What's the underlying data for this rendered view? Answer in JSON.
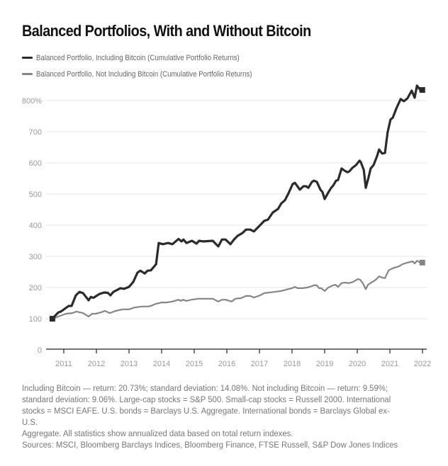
{
  "chart_data": {
    "type": "line",
    "title": "Balanced Portfolios, With and Without Bitcoin",
    "xlabel": "",
    "ylabel": "",
    "xlim": [
      2010.5,
      2022.1
    ],
    "ylim": [
      0,
      850
    ],
    "grid": true,
    "legend_position": "top-left",
    "y_ticks": [
      0,
      100,
      200,
      300,
      400,
      500,
      600,
      700,
      800
    ],
    "y_tick_labels": [
      "0",
      "100",
      "200",
      "300",
      "400",
      "500",
      "600",
      "700",
      "800%"
    ],
    "x_ticks": [
      2011,
      2012,
      2013,
      2014,
      2015,
      2016,
      2017,
      2018,
      2019,
      2020,
      2021,
      2022
    ],
    "x_tick_labels": [
      "2011",
      "2012",
      "2013",
      "2014",
      "2015",
      "2016",
      "2017",
      "2018",
      "2019",
      "2020",
      "2021",
      "2022"
    ],
    "series": [
      {
        "name": "Balanced Portfolio, Including Bitcoin (Cumulative Portfolio Returns)",
        "color": "#2b2b2b",
        "x": [
          2010.65,
          2010.83,
          2010.91,
          2011.15,
          2011.24,
          2011.37,
          2011.48,
          2011.59,
          2011.76,
          2011.83,
          2011.91,
          2012.09,
          2012.24,
          2012.35,
          2012.43,
          2012.52,
          2012.74,
          2012.85,
          2013.0,
          2013.13,
          2013.26,
          2013.35,
          2013.48,
          2013.57,
          2013.67,
          2013.83,
          2013.91,
          2014.04,
          2014.2,
          2014.33,
          2014.52,
          2014.61,
          2014.67,
          2014.76,
          2014.93,
          2015.07,
          2015.15,
          2015.28,
          2015.57,
          2015.67,
          2015.74,
          2015.85,
          2015.96,
          2016.11,
          2016.22,
          2016.33,
          2016.48,
          2016.59,
          2016.72,
          2016.83,
          2017.02,
          2017.15,
          2017.26,
          2017.41,
          2017.57,
          2017.67,
          2017.78,
          2017.89,
          2018.02,
          2018.09,
          2018.24,
          2018.35,
          2018.43,
          2018.5,
          2018.61,
          2018.67,
          2018.76,
          2018.87,
          2018.93,
          2019.0,
          2019.11,
          2019.2,
          2019.26,
          2019.35,
          2019.41,
          2019.52,
          2019.61,
          2019.7,
          2019.76,
          2019.85,
          2019.96,
          2020.07,
          2020.11,
          2020.2,
          2020.26,
          2020.35,
          2020.41,
          2020.5,
          2020.61,
          2020.67,
          2020.76,
          2020.85,
          2020.93,
          2021.02,
          2021.09,
          2021.2,
          2021.33,
          2021.43,
          2021.54,
          2021.67,
          2021.76,
          2021.83,
          2021.93
        ],
        "values": [
          100,
          120,
          123,
          141,
          141,
          175,
          186,
          182,
          159,
          170,
          167,
          179,
          184,
          183,
          175,
          186,
          198,
          196,
          202,
          218,
          248,
          254,
          245,
          254,
          255,
          275,
          343,
          339,
          343,
          339,
          356,
          348,
          354,
          343,
          350,
          341,
          350,
          348,
          350,
          339,
          332,
          354,
          354,
          339,
          354,
          366,
          375,
          386,
          386,
          380,
          400,
          414,
          418,
          441,
          452,
          470,
          480,
          502,
          532,
          536,
          514,
          525,
          525,
          520,
          539,
          543,
          539,
          514,
          507,
          484,
          505,
          520,
          527,
          543,
          545,
          582,
          575,
          570,
          573,
          584,
          593,
          607,
          602,
          577,
          520,
          555,
          582,
          593,
          623,
          643,
          630,
          632,
          698,
          739,
          745,
          775,
          805,
          798,
          807,
          832,
          809,
          848,
          834
        ]
      },
      {
        "name": "Balanced Portfolio, Not Including Bitcoin (Cumulative Portfolio Returns)",
        "color": "#858585",
        "x": [
          2010.65,
          2010.89,
          2011.07,
          2011.26,
          2011.39,
          2011.59,
          2011.76,
          2011.87,
          2011.98,
          2012.13,
          2012.26,
          2012.41,
          2012.59,
          2012.8,
          2013.0,
          2013.17,
          2013.39,
          2013.57,
          2013.67,
          2013.83,
          2014.0,
          2014.15,
          2014.33,
          2014.52,
          2014.59,
          2014.65,
          2014.76,
          2014.91,
          2015.13,
          2015.35,
          2015.57,
          2015.74,
          2015.85,
          2015.96,
          2016.15,
          2016.26,
          2016.43,
          2016.59,
          2016.72,
          2016.83,
          2017.02,
          2017.15,
          2017.46,
          2017.67,
          2017.89,
          2018.0,
          2018.09,
          2018.17,
          2018.33,
          2018.46,
          2018.54,
          2018.67,
          2018.76,
          2018.83,
          2018.89,
          2019.0,
          2019.11,
          2019.26,
          2019.33,
          2019.41,
          2019.52,
          2019.63,
          2019.74,
          2019.87,
          2020.02,
          2020.09,
          2020.17,
          2020.26,
          2020.33,
          2020.46,
          2020.57,
          2020.67,
          2020.76,
          2020.85,
          2020.96,
          2021.07,
          2021.15,
          2021.28,
          2021.39,
          2021.54,
          2021.7,
          2021.76,
          2021.83,
          2021.93
        ],
        "values": [
          100,
          109,
          116,
          118,
          123,
          118,
          107,
          116,
          116,
          120,
          125,
          118,
          125,
          130,
          130,
          136,
          139,
          139,
          141,
          148,
          152,
          152,
          155,
          161,
          157,
          161,
          157,
          161,
          164,
          164,
          164,
          155,
          161,
          161,
          155,
          164,
          166,
          173,
          173,
          168,
          175,
          182,
          186,
          189,
          195,
          198,
          202,
          198,
          198,
          200,
          202,
          207,
          207,
          198,
          198,
          189,
          200,
          207,
          209,
          202,
          214,
          216,
          214,
          218,
          227,
          225,
          214,
          195,
          209,
          218,
          225,
          236,
          232,
          230,
          255,
          261,
          264,
          268,
          275,
          280,
          284,
          277,
          286,
          280
        ]
      }
    ]
  },
  "footnote": {
    "lines": [
      "Including Bitcoin — return: 20.73%; standard deviation: 14.08%. Not including Bitcoin — return: 9.59%;",
      "standard deviation: 9.06%. Large-cap stocks = S&P 500. Small-cap stocks = Russell 2000. International",
      "stocks = MSCI EAFE. U.S. bonds = Barclays U.S. Aggregate. International bonds = Barclays Global ex-U.S.",
      "Aggregate. All statistics show annualized data based on total return indexes.",
      "Sources: MSCI, Bloomberg Barclays Indices, Bloomberg Finance, FTSE Russell, S&P Dow Jones Indices"
    ]
  }
}
